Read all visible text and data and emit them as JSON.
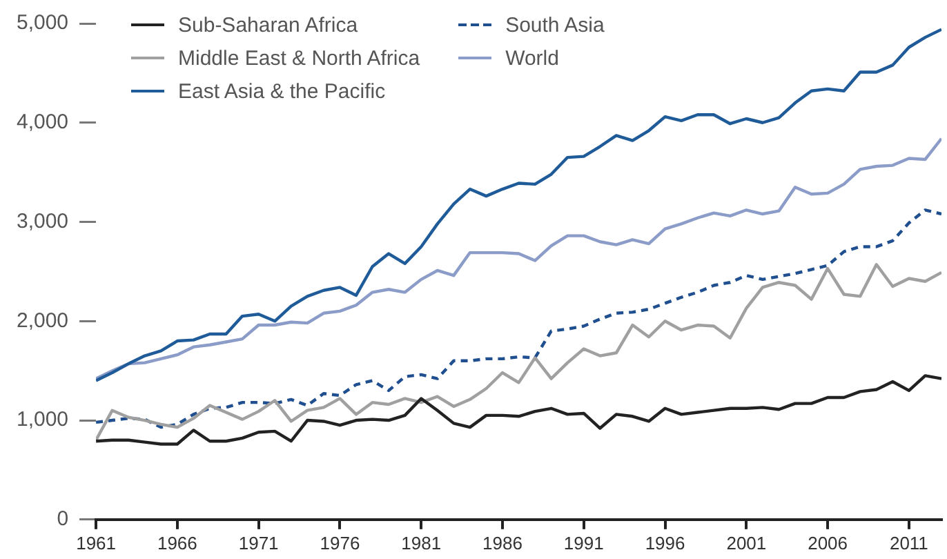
{
  "chart_data": {
    "type": "line",
    "x": [
      1961,
      1962,
      1963,
      1964,
      1965,
      1966,
      1967,
      1968,
      1969,
      1970,
      1971,
      1972,
      1973,
      1974,
      1975,
      1976,
      1977,
      1978,
      1979,
      1980,
      1981,
      1982,
      1983,
      1984,
      1985,
      1986,
      1987,
      1988,
      1989,
      1990,
      1991,
      1992,
      1993,
      1994,
      1995,
      1996,
      1997,
      1998,
      1999,
      2000,
      2001,
      2002,
      2003,
      2004,
      2005,
      2006,
      2007,
      2008,
      2009,
      2010,
      2011,
      2012,
      2013
    ],
    "series": [
      {
        "name": "Sub-Saharan Africa",
        "color": "#222222",
        "values": [
          790,
          800,
          800,
          780,
          760,
          760,
          900,
          790,
          790,
          820,
          880,
          890,
          790,
          1000,
          990,
          950,
          1000,
          1010,
          1000,
          1050,
          1220,
          1100,
          970,
          930,
          1050,
          1050,
          1040,
          1090,
          1120,
          1060,
          1070,
          920,
          1060,
          1040,
          990,
          1120,
          1060,
          1080,
          1100,
          1120,
          1120,
          1130,
          1110,
          1170,
          1170,
          1230,
          1230,
          1290,
          1310,
          1390,
          1300,
          1450,
          1420
        ]
      },
      {
        "name": "Middle East & North Africa",
        "color": "#a0a0a0",
        "values": [
          800,
          1100,
          1030,
          1000,
          960,
          930,
          1020,
          1150,
          1080,
          1010,
          1090,
          1200,
          990,
          1100,
          1130,
          1220,
          1060,
          1180,
          1160,
          1220,
          1180,
          1240,
          1140,
          1210,
          1320,
          1480,
          1380,
          1630,
          1420,
          1580,
          1720,
          1650,
          1680,
          1960,
          1840,
          2000,
          1910,
          1960,
          1950,
          1830,
          2130,
          2340,
          2390,
          2360,
          2220,
          2530,
          2270,
          2250,
          2570,
          2350,
          2430,
          2400,
          2490
        ]
      },
      {
        "name": "East Asia & the Pacific",
        "color": "#1f5b99",
        "values": [
          1400,
          1480,
          1570,
          1650,
          1700,
          1800,
          1810,
          1870,
          1870,
          2050,
          2070,
          2000,
          2150,
          2250,
          2310,
          2340,
          2260,
          2550,
          2680,
          2580,
          2750,
          2980,
          3180,
          3330,
          3260,
          3330,
          3390,
          3380,
          3480,
          3650,
          3660,
          3760,
          3870,
          3820,
          3920,
          4060,
          4020,
          4080,
          4080,
          3990,
          4040,
          4000,
          4050,
          4200,
          4320,
          4340,
          4320,
          4510,
          4510,
          4580,
          4760,
          4860,
          4940
        ]
      },
      {
        "name": "South Asia",
        "color": "#1f4f8f",
        "line_style": "dashed",
        "values": [
          980,
          1000,
          1020,
          1010,
          930,
          960,
          1060,
          1120,
          1130,
          1180,
          1180,
          1170,
          1210,
          1150,
          1270,
          1250,
          1360,
          1400,
          1300,
          1440,
          1460,
          1420,
          1600,
          1600,
          1620,
          1620,
          1640,
          1630,
          1900,
          1920,
          1950,
          2020,
          2080,
          2090,
          2120,
          2180,
          2240,
          2290,
          2360,
          2390,
          2460,
          2420,
          2450,
          2480,
          2520,
          2560,
          2700,
          2750,
          2750,
          2810,
          2990,
          3120,
          3080
        ]
      },
      {
        "name": "World",
        "color": "#8c9cc8",
        "values": [
          1420,
          1500,
          1570,
          1580,
          1620,
          1660,
          1740,
          1760,
          1790,
          1820,
          1960,
          1960,
          1990,
          1980,
          2080,
          2100,
          2160,
          2290,
          2320,
          2290,
          2420,
          2510,
          2460,
          2690,
          2690,
          2690,
          2680,
          2610,
          2760,
          2860,
          2860,
          2800,
          2770,
          2820,
          2780,
          2930,
          2980,
          3040,
          3090,
          3060,
          3120,
          3080,
          3110,
          3350,
          3280,
          3290,
          3380,
          3530,
          3560,
          3570,
          3640,
          3630,
          3840
        ]
      }
    ],
    "xlim": [
      1961,
      2013
    ],
    "xticks": [
      1961,
      1966,
      1971,
      1976,
      1981,
      1986,
      1991,
      1996,
      2001,
      2006,
      2011
    ],
    "ylim": [
      0,
      5000
    ],
    "yticks": [
      0,
      {
        "value": 1000,
        "label": "1,000"
      },
      {
        "value": 2000,
        "label": "2,000"
      },
      {
        "value": 3000,
        "label": "3,000"
      },
      {
        "value": 4000,
        "label": "4,000"
      },
      {
        "value": 5000,
        "label": "5,000"
      }
    ],
    "grid": false,
    "legend": "top left",
    "marker": "none"
  }
}
